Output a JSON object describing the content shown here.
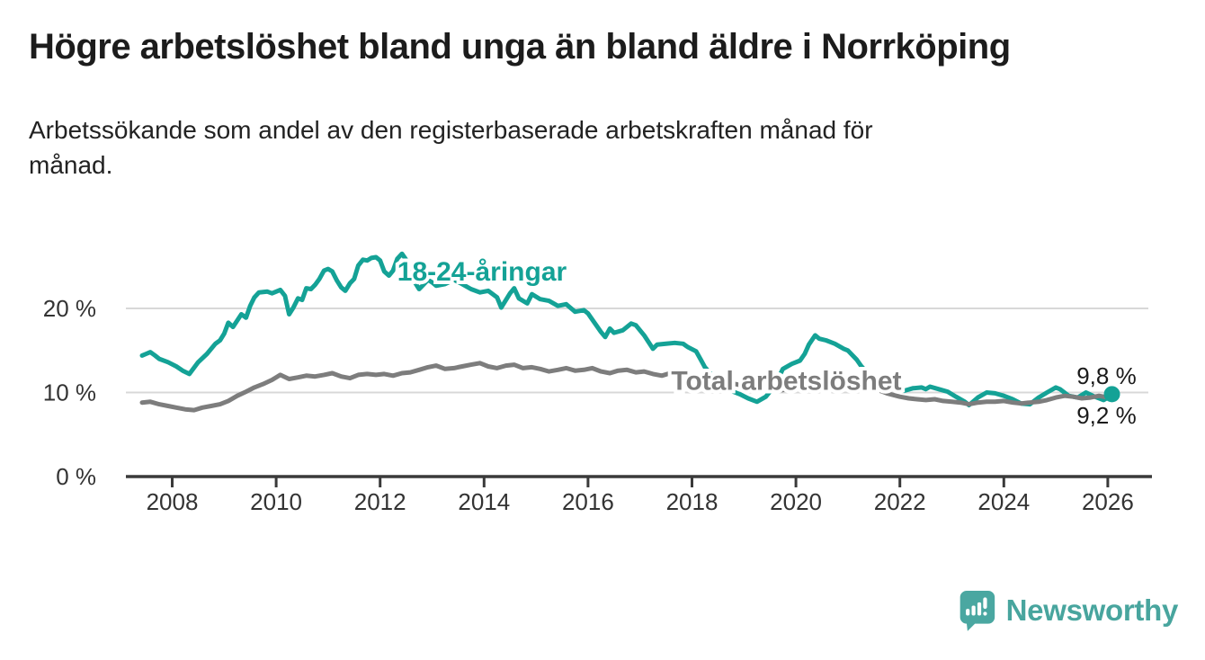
{
  "header": {
    "title": "Högre arbetslöshet bland unga än bland äldre i Norrköping",
    "subtitle": "Arbetssökande som andel av den registerbaserade arbetskraften månad för månad."
  },
  "footer": {
    "brand": "Newsworthy",
    "brand_color": "#48a59e",
    "logo_icon": "speech-bubble-bar-chart-icon"
  },
  "colors": {
    "young_line": "#14a296",
    "total_line": "#7d7d7d",
    "axis": "#3a3a3a",
    "gridline": "#d8d8d8",
    "label_text": "#333333",
    "value_text": "#1a1a1a",
    "halo": "#ffffff"
  },
  "chart_data": {
    "type": "line",
    "title": "Högre arbetslöshet bland unga än bland äldre i Norrköping",
    "xlabel": "",
    "ylabel": "",
    "x_unit": "year (monthly data)",
    "y_unit": "%",
    "xlim": [
      2007.2,
      2026.9
    ],
    "ylim": [
      0,
      28
    ],
    "grid": "horizontal",
    "legend_position": "inline-labels",
    "x_ticks": [
      2008,
      2010,
      2012,
      2014,
      2016,
      2018,
      2020,
      2022,
      2024,
      2026
    ],
    "y_ticks": [
      {
        "value": 0,
        "label": "0 %"
      },
      {
        "value": 10,
        "label": "10 %"
      },
      {
        "value": 20,
        "label": "20 %"
      }
    ],
    "annotations": [
      {
        "id": "young-label",
        "text": "18-24-åringar",
        "x": 2012.33,
        "y": 23.3,
        "font_size": 30,
        "bold": true,
        "color": "#14a296",
        "halo": true
      },
      {
        "id": "total-label",
        "text": "Total arbetslöshet",
        "x": 2017.6,
        "y": 10.3,
        "font_size": 30,
        "bold": true,
        "color": "#7d7d7d",
        "halo": true
      },
      {
        "id": "young-end-value",
        "text": "9,8 %",
        "x": 2025.4,
        "y": 11.0,
        "font_size": 26,
        "bold": false,
        "color": "#1a1a1a",
        "halo": false
      },
      {
        "id": "total-end-value",
        "text": "9,2 %",
        "x": 2025.4,
        "y": 6.3,
        "font_size": 26,
        "bold": false,
        "color": "#1a1a1a",
        "halo": false
      }
    ],
    "end_dot": {
      "series": "18-24-åringar",
      "x": 2026.08,
      "y": 9.8,
      "radius": 9
    },
    "series": [
      {
        "name": "18-24-åringar",
        "color": "#14a296",
        "last_value_label": "9,8 %",
        "points": [
          [
            2007.42,
            14.4
          ],
          [
            2007.5,
            14.6
          ],
          [
            2007.58,
            14.8
          ],
          [
            2007.67,
            14.4
          ],
          [
            2007.75,
            14.0
          ],
          [
            2007.92,
            13.6
          ],
          [
            2008.08,
            13.1
          ],
          [
            2008.2,
            12.6
          ],
          [
            2008.33,
            12.2
          ],
          [
            2008.5,
            13.6
          ],
          [
            2008.67,
            14.6
          ],
          [
            2008.83,
            15.8
          ],
          [
            2008.92,
            16.2
          ],
          [
            2009.0,
            17.0
          ],
          [
            2009.08,
            18.3
          ],
          [
            2009.17,
            17.8
          ],
          [
            2009.33,
            19.3
          ],
          [
            2009.42,
            18.9
          ],
          [
            2009.5,
            20.3
          ],
          [
            2009.58,
            21.3
          ],
          [
            2009.67,
            21.9
          ],
          [
            2009.83,
            22.0
          ],
          [
            2009.92,
            21.8
          ],
          [
            2010.0,
            22.0
          ],
          [
            2010.08,
            22.2
          ],
          [
            2010.17,
            21.5
          ],
          [
            2010.25,
            19.3
          ],
          [
            2010.33,
            20.1
          ],
          [
            2010.42,
            21.2
          ],
          [
            2010.5,
            21.0
          ],
          [
            2010.58,
            22.4
          ],
          [
            2010.67,
            22.3
          ],
          [
            2010.75,
            22.8
          ],
          [
            2010.83,
            23.5
          ],
          [
            2010.92,
            24.5
          ],
          [
            2011.0,
            24.7
          ],
          [
            2011.08,
            24.4
          ],
          [
            2011.17,
            23.3
          ],
          [
            2011.25,
            22.5
          ],
          [
            2011.33,
            22.1
          ],
          [
            2011.42,
            23.0
          ],
          [
            2011.5,
            23.5
          ],
          [
            2011.58,
            25.1
          ],
          [
            2011.67,
            25.8
          ],
          [
            2011.75,
            25.7
          ],
          [
            2011.83,
            26.0
          ],
          [
            2011.92,
            26.1
          ],
          [
            2012.0,
            25.7
          ],
          [
            2012.08,
            24.4
          ],
          [
            2012.17,
            23.9
          ],
          [
            2012.25,
            24.5
          ],
          [
            2012.33,
            25.9
          ],
          [
            2012.42,
            26.5
          ],
          [
            2012.5,
            25.8
          ],
          [
            2012.58,
            24.5
          ],
          [
            2012.67,
            23.1
          ],
          [
            2012.75,
            22.3
          ],
          [
            2012.83,
            22.8
          ],
          [
            2012.92,
            23.4
          ],
          [
            2013.0,
            23.1
          ],
          [
            2013.08,
            22.7
          ],
          [
            2013.25,
            22.9
          ],
          [
            2013.42,
            23.4
          ],
          [
            2013.58,
            22.9
          ],
          [
            2013.75,
            22.3
          ],
          [
            2013.92,
            21.9
          ],
          [
            2014.08,
            22.1
          ],
          [
            2014.25,
            21.3
          ],
          [
            2014.33,
            20.1
          ],
          [
            2014.5,
            21.8
          ],
          [
            2014.58,
            22.4
          ],
          [
            2014.67,
            21.2
          ],
          [
            2014.83,
            20.6
          ],
          [
            2014.92,
            21.7
          ],
          [
            2015.08,
            21.1
          ],
          [
            2015.25,
            20.9
          ],
          [
            2015.42,
            20.3
          ],
          [
            2015.58,
            20.5
          ],
          [
            2015.75,
            19.6
          ],
          [
            2015.92,
            19.8
          ],
          [
            2016.0,
            19.4
          ],
          [
            2016.08,
            18.7
          ],
          [
            2016.25,
            17.2
          ],
          [
            2016.33,
            16.6
          ],
          [
            2016.42,
            17.6
          ],
          [
            2016.5,
            17.1
          ],
          [
            2016.67,
            17.4
          ],
          [
            2016.83,
            18.2
          ],
          [
            2016.92,
            18.0
          ],
          [
            2017.08,
            16.8
          ],
          [
            2017.25,
            15.2
          ],
          [
            2017.33,
            15.7
          ],
          [
            2017.5,
            15.8
          ],
          [
            2017.67,
            15.9
          ],
          [
            2017.83,
            15.8
          ],
          [
            2017.92,
            15.4
          ],
          [
            2018.08,
            14.9
          ],
          [
            2018.17,
            13.9
          ],
          [
            2018.25,
            13.0
          ],
          [
            2018.42,
            11.8
          ],
          [
            2018.58,
            10.8
          ],
          [
            2018.75,
            10.2
          ],
          [
            2018.92,
            9.8
          ],
          [
            2019.08,
            9.3
          ],
          [
            2019.25,
            8.9
          ],
          [
            2019.42,
            9.5
          ],
          [
            2019.58,
            10.7
          ],
          [
            2019.75,
            12.8
          ],
          [
            2019.92,
            13.4
          ],
          [
            2020.08,
            13.8
          ],
          [
            2020.17,
            14.6
          ],
          [
            2020.25,
            15.7
          ],
          [
            2020.37,
            16.8
          ],
          [
            2020.45,
            16.4
          ],
          [
            2020.58,
            16.2
          ],
          [
            2020.75,
            15.8
          ],
          [
            2020.92,
            15.2
          ],
          [
            2021.0,
            15.0
          ],
          [
            2021.17,
            13.9
          ],
          [
            2021.25,
            13.2
          ],
          [
            2021.42,
            12.0
          ],
          [
            2021.58,
            11.2
          ],
          [
            2021.75,
            10.8
          ],
          [
            2021.92,
            10.4
          ],
          [
            2022.08,
            10.2
          ],
          [
            2022.25,
            10.5
          ],
          [
            2022.42,
            10.6
          ],
          [
            2022.5,
            10.4
          ],
          [
            2022.58,
            10.7
          ],
          [
            2022.75,
            10.4
          ],
          [
            2022.92,
            10.1
          ],
          [
            2023.08,
            9.5
          ],
          [
            2023.25,
            8.9
          ],
          [
            2023.33,
            8.5
          ],
          [
            2023.5,
            9.4
          ],
          [
            2023.67,
            10.0
          ],
          [
            2023.83,
            9.9
          ],
          [
            2024.0,
            9.6
          ],
          [
            2024.17,
            9.2
          ],
          [
            2024.33,
            8.7
          ],
          [
            2024.5,
            8.6
          ],
          [
            2024.67,
            9.4
          ],
          [
            2024.83,
            10.0
          ],
          [
            2025.0,
            10.6
          ],
          [
            2025.08,
            10.4
          ],
          [
            2025.25,
            9.6
          ],
          [
            2025.42,
            9.4
          ],
          [
            2025.58,
            10.0
          ],
          [
            2025.75,
            9.5
          ],
          [
            2025.92,
            9.1
          ],
          [
            2026.0,
            9.4
          ],
          [
            2026.08,
            9.8
          ]
        ]
      },
      {
        "name": "Total arbetslöshet",
        "color": "#7d7d7d",
        "last_value_label": "9,2 %",
        "points": [
          [
            2007.42,
            8.8
          ],
          [
            2007.58,
            8.9
          ],
          [
            2007.75,
            8.6
          ],
          [
            2007.92,
            8.4
          ],
          [
            2008.08,
            8.2
          ],
          [
            2008.25,
            8.0
          ],
          [
            2008.42,
            7.9
          ],
          [
            2008.58,
            8.2
          ],
          [
            2008.75,
            8.4
          ],
          [
            2008.92,
            8.6
          ],
          [
            2009.08,
            9.0
          ],
          [
            2009.25,
            9.6
          ],
          [
            2009.42,
            10.1
          ],
          [
            2009.58,
            10.6
          ],
          [
            2009.75,
            11.0
          ],
          [
            2009.92,
            11.5
          ],
          [
            2010.08,
            12.1
          ],
          [
            2010.25,
            11.6
          ],
          [
            2010.42,
            11.8
          ],
          [
            2010.58,
            12.0
          ],
          [
            2010.75,
            11.9
          ],
          [
            2010.92,
            12.1
          ],
          [
            2011.08,
            12.3
          ],
          [
            2011.25,
            11.9
          ],
          [
            2011.42,
            11.7
          ],
          [
            2011.58,
            12.1
          ],
          [
            2011.75,
            12.2
          ],
          [
            2011.92,
            12.1
          ],
          [
            2012.08,
            12.2
          ],
          [
            2012.25,
            12.0
          ],
          [
            2012.42,
            12.3
          ],
          [
            2012.58,
            12.4
          ],
          [
            2012.75,
            12.7
          ],
          [
            2012.92,
            13.0
          ],
          [
            2013.08,
            13.2
          ],
          [
            2013.25,
            12.8
          ],
          [
            2013.42,
            12.9
          ],
          [
            2013.58,
            13.1
          ],
          [
            2013.75,
            13.3
          ],
          [
            2013.92,
            13.5
          ],
          [
            2014.08,
            13.1
          ],
          [
            2014.25,
            12.9
          ],
          [
            2014.42,
            13.2
          ],
          [
            2014.58,
            13.3
          ],
          [
            2014.75,
            12.9
          ],
          [
            2014.92,
            13.0
          ],
          [
            2015.08,
            12.8
          ],
          [
            2015.25,
            12.5
          ],
          [
            2015.42,
            12.7
          ],
          [
            2015.58,
            12.9
          ],
          [
            2015.75,
            12.6
          ],
          [
            2015.92,
            12.7
          ],
          [
            2016.08,
            12.9
          ],
          [
            2016.25,
            12.5
          ],
          [
            2016.42,
            12.3
          ],
          [
            2016.58,
            12.6
          ],
          [
            2016.75,
            12.7
          ],
          [
            2016.92,
            12.4
          ],
          [
            2017.08,
            12.5
          ],
          [
            2017.25,
            12.2
          ],
          [
            2017.42,
            12.0
          ],
          [
            2017.58,
            12.3
          ],
          [
            2017.75,
            12.2
          ],
          [
            2017.92,
            11.9
          ],
          [
            2018.25,
            11.7
          ],
          [
            2018.5,
            11.4
          ],
          [
            2018.75,
            11.1
          ],
          [
            2019.0,
            10.8
          ],
          [
            2019.25,
            10.4
          ],
          [
            2019.5,
            10.2
          ],
          [
            2019.75,
            10.3
          ],
          [
            2020.0,
            10.6
          ],
          [
            2020.25,
            11.3
          ],
          [
            2020.5,
            11.8
          ],
          [
            2020.75,
            11.9
          ],
          [
            2021.0,
            11.6
          ],
          [
            2021.25,
            11.1
          ],
          [
            2021.5,
            10.5
          ],
          [
            2021.75,
            9.9
          ],
          [
            2022.0,
            9.5
          ],
          [
            2022.17,
            9.3
          ],
          [
            2022.33,
            9.2
          ],
          [
            2022.5,
            9.1
          ],
          [
            2022.67,
            9.2
          ],
          [
            2022.83,
            9.0
          ],
          [
            2023.0,
            8.9
          ],
          [
            2023.17,
            8.8
          ],
          [
            2023.33,
            8.6
          ],
          [
            2023.5,
            8.8
          ],
          [
            2023.67,
            8.9
          ],
          [
            2023.83,
            8.9
          ],
          [
            2024.0,
            9.0
          ],
          [
            2024.17,
            8.8
          ],
          [
            2024.33,
            8.7
          ],
          [
            2024.5,
            8.8
          ],
          [
            2024.67,
            8.9
          ],
          [
            2024.83,
            9.1
          ],
          [
            2025.0,
            9.4
          ],
          [
            2025.17,
            9.6
          ],
          [
            2025.33,
            9.5
          ],
          [
            2025.5,
            9.3
          ],
          [
            2025.67,
            9.4
          ],
          [
            2025.83,
            9.6
          ],
          [
            2026.0,
            9.4
          ],
          [
            2026.08,
            9.2
          ]
        ]
      }
    ]
  }
}
